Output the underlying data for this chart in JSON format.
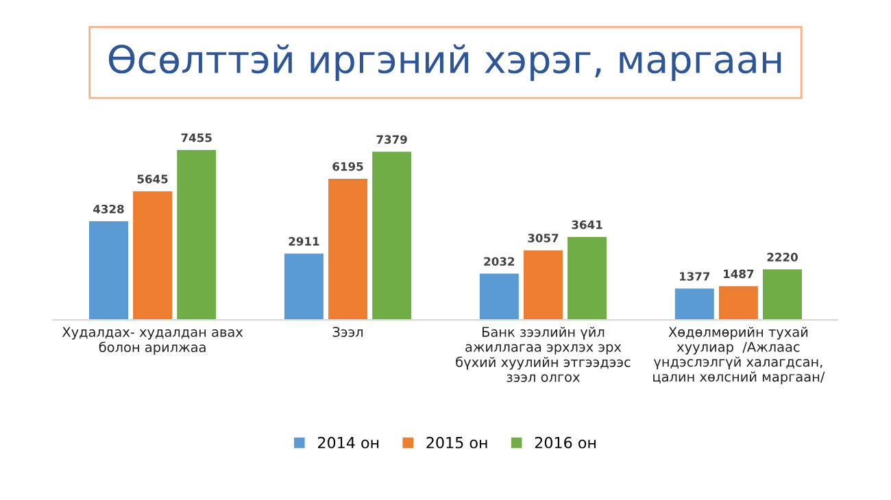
{
  "chart_data": {
    "type": "bar",
    "title": "Өсөлттэй иргэний хэрэг, маргаан",
    "categories": [
      "Худалдах- худалдан авах\nболон арилжаа",
      "Зээл",
      "Банк зээлийн үйл\nажиллагаа эрхлэх эрх\nбүхий хуулийн этгээдээс\nзээл олгох",
      "Хөдөлмөрийн тухай\nхуулиар  /Ажлаас\nүндэслэлгүй халагдсан,\nцалин хөлсний маргаан/"
    ],
    "series": [
      {
        "name": "2014 он",
        "color": "#5b9bd5",
        "values": [
          4328,
          2911,
          2032,
          1377
        ]
      },
      {
        "name": "2015 он",
        "color": "#ed7d31",
        "values": [
          5645,
          6195,
          3057,
          1487
        ]
      },
      {
        "name": "2016 он",
        "color": "#70ad47",
        "values": [
          7455,
          7379,
          3641,
          2220
        ]
      }
    ],
    "data_labels": true,
    "legend": "bottom"
  }
}
